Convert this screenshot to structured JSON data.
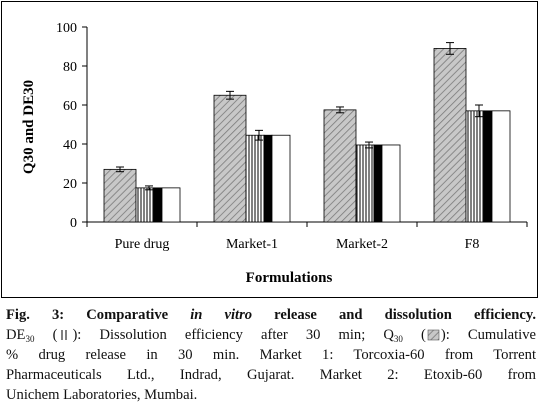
{
  "chart_data": {
    "type": "bar",
    "xlabel": "Formulations",
    "ylabel": "Q30 and DE30",
    "ylim": [
      0,
      100
    ],
    "yticks": [
      0,
      20,
      40,
      60,
      80,
      100
    ],
    "categories": [
      "Pure drug",
      "Market-1",
      "Market-2",
      "F8"
    ],
    "series": [
      {
        "values": [
          27,
          65,
          57.5,
          89
        ],
        "errors": [
          1.2,
          2,
          1.5,
          3
        ],
        "fill": "hatched-gray"
      },
      {
        "values": [
          17.5,
          44.5,
          39.5,
          57
        ],
        "errors": [
          1,
          2.5,
          1.5,
          3
        ],
        "fill": "vertical-lines"
      },
      {
        "values": [
          17.5,
          44.5,
          39.5,
          57
        ],
        "errors": [
          0,
          0,
          0,
          0
        ],
        "fill": "black"
      },
      {
        "values": [
          17.5,
          44.5,
          39.5,
          57
        ],
        "errors": [
          0,
          0,
          0,
          0
        ],
        "fill": "white"
      }
    ],
    "grid": false,
    "legend": "none"
  },
  "caption": {
    "fig": "Fig. 3: Comparative ",
    "italic": "in vitro",
    "rest1": " release and dissolution efficiency.",
    "de_main": "DE",
    "de_sub": "30",
    "de_desc": "): Dissolution efficiency after 30 min; Q",
    "q_sub": "30",
    "q_desc": "): Cumulative",
    "line3": "% drug release in 30 min. Market 1: Torcoxia-60 from Torrent",
    "line4": "Pharmaceuticals Ltd., Indrad, Gujarat. Market 2: Etoxib-60 from",
    "line5": "Unichem Laboratories, Mumbai."
  }
}
